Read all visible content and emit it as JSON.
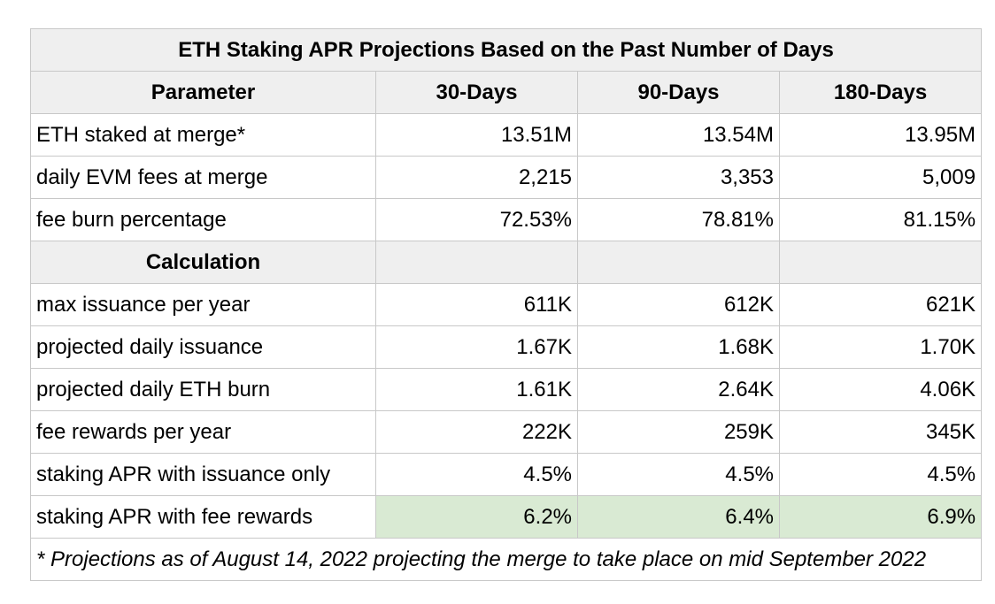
{
  "title": "ETH Staking APR Projections Based on the Past Number of Days",
  "header": {
    "parameter": "Parameter",
    "columns": [
      "30-Days",
      "90-Days",
      "180-Days"
    ]
  },
  "parameters": [
    {
      "label": "ETH staked at merge*",
      "values": [
        "13.51M",
        "13.54M",
        "13.95M"
      ]
    },
    {
      "label": "daily EVM fees at merge",
      "values": [
        "2,215",
        "3,353",
        "5,009"
      ]
    },
    {
      "label": "fee burn percentage",
      "values": [
        "72.53%",
        "78.81%",
        "81.15%"
      ]
    }
  ],
  "section_label": "Calculation",
  "calculations": [
    {
      "label": "max issuance per year",
      "values": [
        "611K",
        "612K",
        "621K"
      ]
    },
    {
      "label": "projected daily issuance",
      "values": [
        "1.67K",
        "1.68K",
        "1.70K"
      ]
    },
    {
      "label": "projected daily ETH burn",
      "values": [
        "1.61K",
        "2.64K",
        "4.06K"
      ]
    },
    {
      "label": "fee rewards per year",
      "values": [
        "222K",
        "259K",
        "345K"
      ]
    },
    {
      "label": "staking APR with issuance only",
      "values": [
        "4.5%",
        "4.5%",
        "4.5%"
      ]
    },
    {
      "label": "staking APR with fee rewards",
      "values": [
        "6.2%",
        "6.4%",
        "6.9%"
      ]
    }
  ],
  "highlight_color": "#d9ead3",
  "footnote": "* Projections as of August 14, 2022 projecting the merge to take place on mid September 2022"
}
